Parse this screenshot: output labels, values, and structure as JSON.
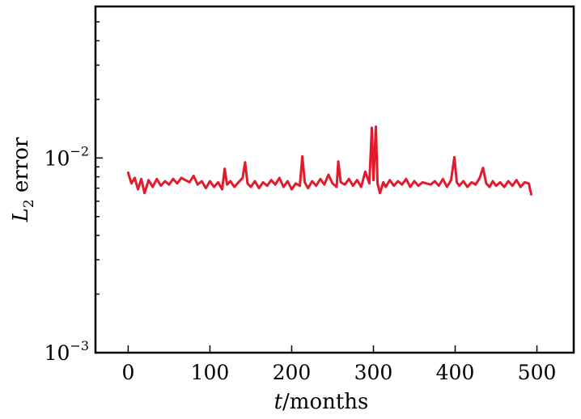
{
  "chart_data": {
    "type": "line",
    "xlabel_var": "t",
    "xlabel_unit": "/months",
    "ylabel_var": "L",
    "ylabel_sub": "2",
    "ylabel_rest": " error",
    "xlim": [
      -40,
      545
    ],
    "ylim": [
      0.001,
      0.06
    ],
    "yscale": "log",
    "x_ticks": [
      0,
      100,
      200,
      300,
      400,
      500
    ],
    "x_tick_labels": [
      "0",
      "100",
      "200",
      "300",
      "400",
      "500"
    ],
    "y_major_ticks": [
      {
        "value": 0.01,
        "base": "10",
        "exp": "−2"
      },
      {
        "value": 0.001,
        "base": "10",
        "exp": "−3"
      }
    ],
    "y_minor_ticks": [
      0.002,
      0.003,
      0.004,
      0.005,
      0.006,
      0.007,
      0.008,
      0.009,
      0.02,
      0.03,
      0.04,
      0.05
    ],
    "grid": false,
    "series": [
      {
        "color": "#e31a2c",
        "x": [
          0,
          4,
          8,
          12,
          16,
          20,
          25,
          30,
          35,
          40,
          45,
          50,
          55,
          60,
          65,
          70,
          75,
          80,
          85,
          90,
          95,
          100,
          105,
          110,
          115,
          118,
          121,
          125,
          130,
          135,
          140,
          143,
          146,
          150,
          155,
          160,
          165,
          170,
          175,
          180,
          185,
          190,
          195,
          200,
          205,
          210,
          213,
          216,
          220,
          225,
          230,
          235,
          240,
          245,
          250,
          255,
          257,
          260,
          265,
          270,
          275,
          280,
          285,
          290,
          295,
          298,
          300,
          303,
          305,
          308,
          312,
          315,
          320,
          325,
          330,
          335,
          340,
          345,
          350,
          355,
          360,
          365,
          370,
          375,
          380,
          385,
          390,
          395,
          399,
          402,
          405,
          410,
          415,
          420,
          425,
          430,
          434,
          438,
          442,
          446,
          450,
          455,
          460,
          465,
          470,
          475,
          480,
          485,
          490,
          493
        ],
        "values": [
          0.0084,
          0.0074,
          0.0079,
          0.0069,
          0.0078,
          0.0066,
          0.0077,
          0.0071,
          0.0078,
          0.0072,
          0.0076,
          0.0073,
          0.0078,
          0.0074,
          0.0079,
          0.0077,
          0.0075,
          0.0081,
          0.0073,
          0.0076,
          0.007,
          0.0076,
          0.0071,
          0.0075,
          0.0069,
          0.0088,
          0.0073,
          0.0076,
          0.0071,
          0.0075,
          0.0079,
          0.0095,
          0.0074,
          0.0071,
          0.0076,
          0.007,
          0.0075,
          0.0072,
          0.0077,
          0.0073,
          0.0079,
          0.0071,
          0.0076,
          0.0069,
          0.0074,
          0.0072,
          0.0102,
          0.0075,
          0.007,
          0.0076,
          0.0072,
          0.0078,
          0.0073,
          0.0082,
          0.0074,
          0.0071,
          0.0096,
          0.0075,
          0.0073,
          0.0078,
          0.0072,
          0.0077,
          0.0071,
          0.0085,
          0.0074,
          0.0143,
          0.0077,
          0.0145,
          0.0074,
          0.0066,
          0.0075,
          0.0071,
          0.0077,
          0.0072,
          0.0076,
          0.0073,
          0.0078,
          0.0071,
          0.0076,
          0.0072,
          0.0075,
          0.0074,
          0.0073,
          0.0076,
          0.0072,
          0.0078,
          0.0071,
          0.0077,
          0.0101,
          0.0075,
          0.0072,
          0.0076,
          0.0071,
          0.0075,
          0.0073,
          0.0079,
          0.0089,
          0.0074,
          0.0071,
          0.0076,
          0.0072,
          0.0075,
          0.0071,
          0.0076,
          0.0072,
          0.0077,
          0.0071,
          0.0075,
          0.0074,
          0.0065
        ]
      }
    ]
  }
}
